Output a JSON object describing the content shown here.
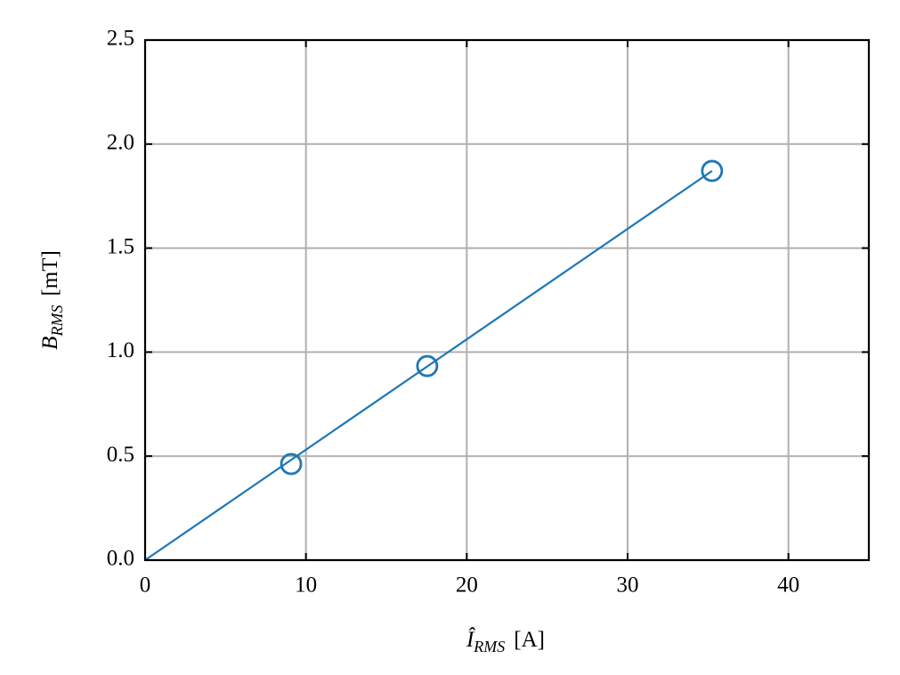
{
  "chart_data": {
    "type": "scatter",
    "xlabel": {
      "symbol": "Î",
      "subscript": "RMS",
      "unit": "[A]"
    },
    "ylabel": {
      "symbol": "B",
      "subscript": "RMS",
      "unit": "[mT]"
    },
    "xlim": [
      0,
      45
    ],
    "ylim": [
      0,
      2.5
    ],
    "xticks": [
      0,
      10,
      20,
      30,
      40
    ],
    "yticks": [
      {
        "value": 0,
        "label": "0.0"
      },
      {
        "value": 0.5,
        "label": "0.5"
      },
      {
        "value": 1,
        "label": "1.0"
      },
      {
        "value": 1.5,
        "label": "1.5"
      },
      {
        "value": 2,
        "label": "2.0"
      },
      {
        "value": 2.5,
        "label": "2.5"
      }
    ],
    "grid": true,
    "series": [
      {
        "style": "markers",
        "marker": "open-circle",
        "color": "#1f77b4",
        "x": [
          9.08,
          17.54,
          35.25
        ],
        "values": [
          0.462,
          0.933,
          1.871
        ]
      },
      {
        "style": "line",
        "color": "#1f77b4",
        "x": [
          0,
          35.25
        ],
        "values": [
          0,
          1.871
        ]
      }
    ]
  }
}
